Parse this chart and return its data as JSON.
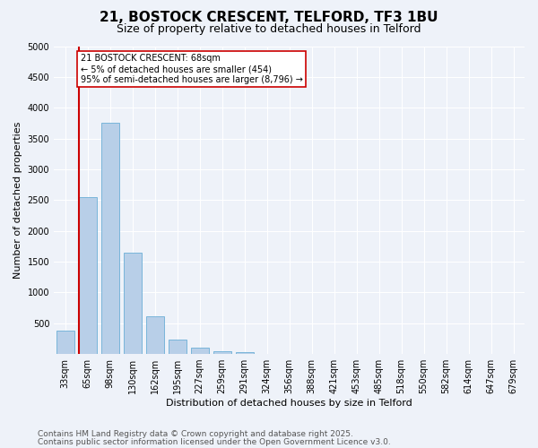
{
  "title1": "21, BOSTOCK CRESCENT, TELFORD, TF3 1BU",
  "title2": "Size of property relative to detached houses in Telford",
  "xlabel": "Distribution of detached houses by size in Telford",
  "ylabel": "Number of detached properties",
  "categories": [
    "33sqm",
    "65sqm",
    "98sqm",
    "130sqm",
    "162sqm",
    "195sqm",
    "227sqm",
    "259sqm",
    "291sqm",
    "324sqm",
    "356sqm",
    "388sqm",
    "421sqm",
    "453sqm",
    "485sqm",
    "518sqm",
    "550sqm",
    "582sqm",
    "614sqm",
    "647sqm",
    "679sqm"
  ],
  "values": [
    375,
    2550,
    3760,
    1640,
    610,
    230,
    100,
    50,
    30,
    0,
    0,
    0,
    0,
    0,
    0,
    0,
    0,
    0,
    0,
    0,
    0
  ],
  "bar_color": "#b8cfe8",
  "bar_edge_color": "#6baed6",
  "vline_color": "#cc0000",
  "annotation_text": "21 BOSTOCK CRESCENT: 68sqm\n← 5% of detached houses are smaller (454)\n95% of semi-detached houses are larger (8,796) →",
  "annotation_box_color": "#ffffff",
  "annotation_box_edge": "#cc0000",
  "ylim": [
    0,
    5000
  ],
  "yticks": [
    0,
    500,
    1000,
    1500,
    2000,
    2500,
    3000,
    3500,
    4000,
    4500,
    5000
  ],
  "bg_color": "#eef2f9",
  "grid_color": "#ffffff",
  "footer_line1": "Contains HM Land Registry data © Crown copyright and database right 2025.",
  "footer_line2": "Contains public sector information licensed under the Open Government Licence v3.0.",
  "title1_fontsize": 11,
  "title2_fontsize": 9,
  "xlabel_fontsize": 8,
  "ylabel_fontsize": 8,
  "tick_fontsize": 7,
  "footer_fontsize": 6.5,
  "ann_fontsize": 7
}
